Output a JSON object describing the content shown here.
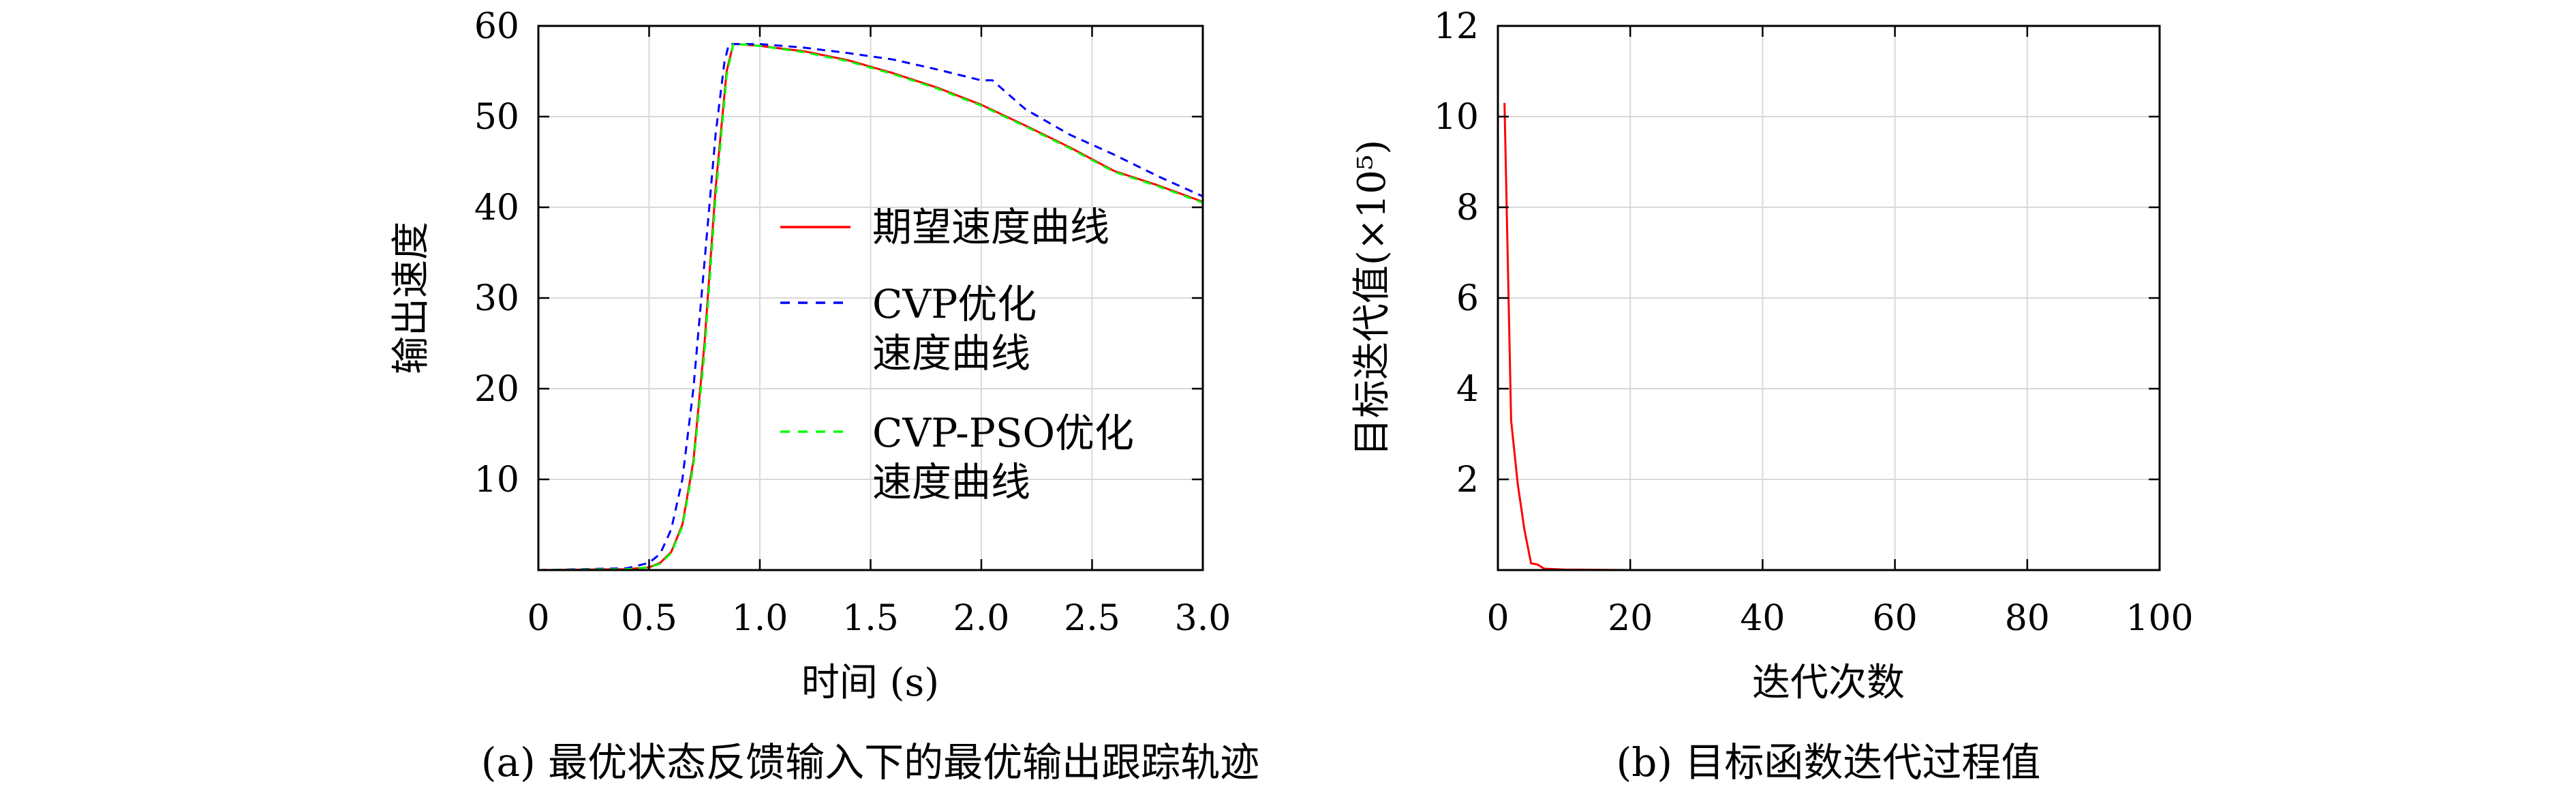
{
  "chart_data": [
    {
      "type": "line",
      "caption": "(a) 最优状态反馈输入下的最优输出跟踪轨迹",
      "xlabel": "时间 (s)",
      "ylabel": "输出速度",
      "xlim": [
        0,
        3.0
      ],
      "ylim": [
        0,
        60
      ],
      "xtick_labels": [
        "0",
        "0.5",
        "1.0",
        "1.5",
        "2.0",
        "2.5",
        "3.0"
      ],
      "ytick_labels": [
        "10",
        "20",
        "30",
        "40",
        "50",
        "60"
      ],
      "grid": true,
      "legend_position": "center-right",
      "series": [
        {
          "name": "期望速度曲线",
          "color": "#ff0000",
          "dash": "solid",
          "x": [
            0,
            0.4,
            0.5,
            0.55,
            0.6,
            0.65,
            0.7,
            0.75,
            0.8,
            0.85,
            0.88,
            0.9,
            1.0,
            1.2,
            1.4,
            1.6,
            1.8,
            2.0,
            2.2,
            2.4,
            2.6,
            2.8,
            3.0
          ],
          "y": [
            0,
            0.1,
            0.3,
            0.8,
            2.0,
            5.0,
            12.0,
            25.0,
            42.0,
            55.0,
            58.0,
            58.0,
            57.8,
            57.2,
            56.2,
            54.8,
            53.2,
            51.3,
            49.0,
            46.6,
            44.0,
            42.4,
            40.6
          ]
        },
        {
          "name": "CVP优化\n速度曲线",
          "color": "#0000ff",
          "dash": "dashed",
          "x": [
            0,
            0.4,
            0.5,
            0.55,
            0.6,
            0.65,
            0.7,
            0.75,
            0.8,
            0.84,
            0.86,
            0.9,
            1.0,
            1.2,
            1.4,
            1.6,
            1.8,
            2.0,
            2.05,
            2.2,
            2.4,
            2.6,
            2.8,
            3.0
          ],
          "y": [
            0,
            0.2,
            0.8,
            1.8,
            4.5,
            10.0,
            20.0,
            34.0,
            48.0,
            56.0,
            58.0,
            58.0,
            58.0,
            57.6,
            57.0,
            56.3,
            55.2,
            54.0,
            54.0,
            50.8,
            48.0,
            45.8,
            43.4,
            41.2
          ]
        },
        {
          "name": "CVP-PSO优化\n速度曲线",
          "color": "#00ff00",
          "dash": "dashed",
          "x": [
            0,
            0.4,
            0.5,
            0.55,
            0.6,
            0.65,
            0.7,
            0.75,
            0.8,
            0.85,
            0.88,
            0.9,
            1.0,
            1.2,
            1.4,
            1.6,
            1.8,
            2.0,
            2.2,
            2.4,
            2.6,
            2.8,
            3.0
          ],
          "y": [
            0,
            0.1,
            0.3,
            0.7,
            1.9,
            4.8,
            11.5,
            24.0,
            41.0,
            54.5,
            58.0,
            58.0,
            57.8,
            57.1,
            56.1,
            54.7,
            53.1,
            51.2,
            48.9,
            46.5,
            43.9,
            42.3,
            40.5
          ]
        }
      ]
    },
    {
      "type": "line",
      "caption": "(b) 目标函数迭代过程值",
      "xlabel": "迭代次数",
      "ylabel": "目标迭代值(×10⁵)",
      "xlim": [
        0,
        100
      ],
      "ylim": [
        0,
        12
      ],
      "xtick_labels": [
        "0",
        "20",
        "40",
        "60",
        "80",
        "100"
      ],
      "ytick_labels": [
        "2",
        "4",
        "6",
        "8",
        "10",
        "12"
      ],
      "grid": true,
      "series": [
        {
          "color": "#ff0000",
          "dash": "solid",
          "x": [
            1,
            2,
            3,
            4,
            5,
            6,
            7,
            10,
            20,
            40,
            60,
            80,
            100
          ],
          "y": [
            10.3,
            3.3,
            1.9,
            0.9,
            0.15,
            0.12,
            0.03,
            0.01,
            0.0,
            0.0,
            0.0,
            0.0,
            0.0
          ]
        }
      ]
    }
  ]
}
